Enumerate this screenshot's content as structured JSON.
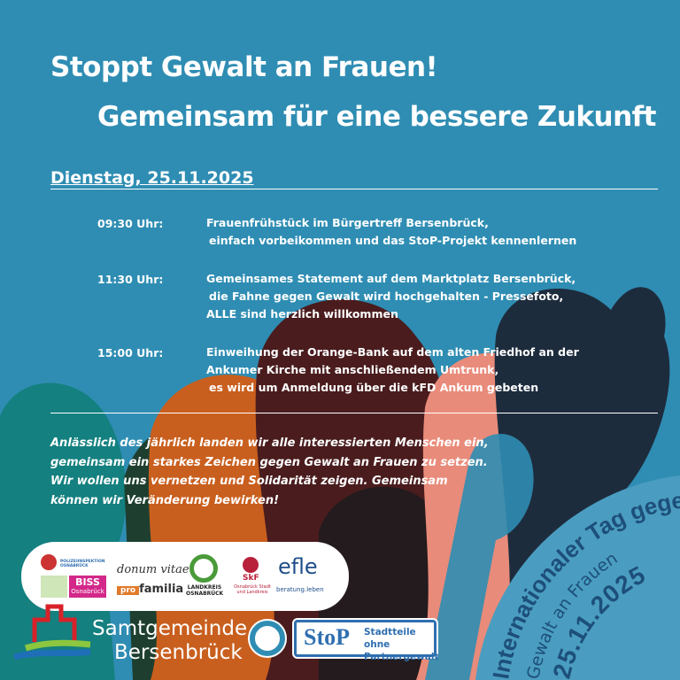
{
  "title": {
    "line1": "Stoppt Gewalt an Frauen!",
    "line2": "Gemeinsam für eine bessere Zukunft"
  },
  "date_heading": "Dienstag, 25.11.2025",
  "schedule": [
    {
      "time": "09:30 Uhr:",
      "lines": [
        "Frauenfrühstück im Bürgertreff Bersenbrück,",
        "einfach vorbeikommen und das StoP-Projekt kennenlernen"
      ]
    },
    {
      "time": "11:30 Uhr:",
      "lines": [
        "Gemeinsames Statement auf dem Marktplatz Bersenbrück,",
        "die Fahne gegen Gewalt wird hochgehalten - Pressefoto,",
        "ALLE sind herzlich willkommen"
      ]
    },
    {
      "time": "15:00 Uhr:",
      "lines": [
        "Einweihung der Orange-Bank auf dem alten Friedhof an der",
        "Ankumer Kirche mit anschließendem Umtrunk,",
        "es wird um Anmeldung über die kFD Ankum gebeten"
      ]
    }
  ],
  "paragraph": [
    "Anlässlich des jährlich landen wir alle interessierten Menschen ein,",
    "gemeinsam ein starkes Zeichen gegen Gewalt an Frauen zu setzen.",
    "Wir wollen uns vernetzen und Solidarität zeigen. Gemeinsam",
    "können wir Veränderung bewirken!"
  ],
  "logos": {
    "polizei": "POLIZEIINSPEKTION OSNABRÜCK",
    "biss": "BISS",
    "biss_sub": "Osnabrück",
    "donum": "donum vitae",
    "profamilia_pro": "pro",
    "profamilia": "familia",
    "landkreis": "LANDKREIS OSNABRÜCK",
    "skf": "SkF",
    "skf_sub": "Osnabrück Stadt und Landkreis",
    "efle": "efle",
    "efle_sub": "beratung.leben"
  },
  "samtgemeinde": {
    "line1": "Samtgemeinde",
    "line2": "Bersenbrück"
  },
  "stop": {
    "logo": "StoP",
    "line1": "Stadtteile ohne",
    "line2": "Partnergewalt"
  },
  "badge": {
    "line1": "Internationaler Tag gegen",
    "line2": "Gewalt an Frauen",
    "line3": "25.11.2025"
  },
  "colors": {
    "background": "#2f8db3",
    "badge": "#4a9dc0",
    "badge_text": "#1d4f7a",
    "teal": "#14807f",
    "orange": "#c95f1e",
    "maroon": "#4a1c1e",
    "salmon": "#e98b7a",
    "dark": "#1f1a1c"
  }
}
